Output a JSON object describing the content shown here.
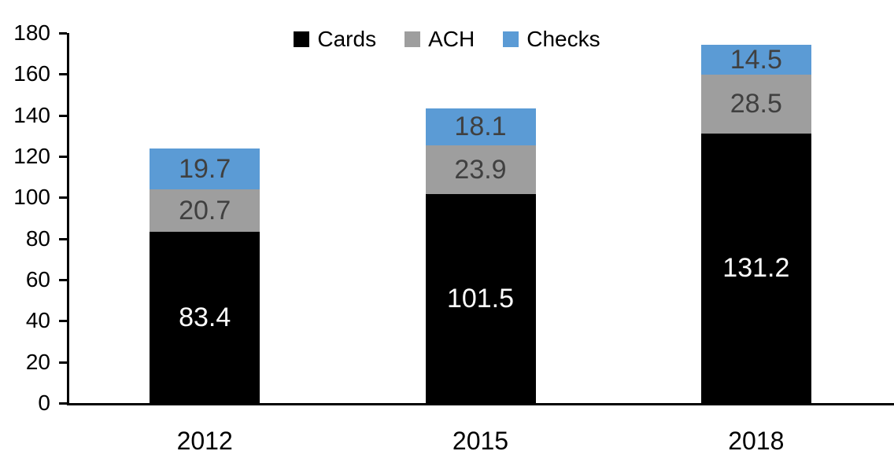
{
  "chart_data": {
    "type": "bar",
    "stacked": true,
    "title": "",
    "xlabel": "",
    "ylabel": "",
    "categories": [
      "2012",
      "2015",
      "2018"
    ],
    "series": [
      {
        "name": "Cards",
        "color": "#000000",
        "label_color": "#ffffff",
        "values": [
          83.4,
          101.5,
          131.2
        ]
      },
      {
        "name": "ACH",
        "color": "#9e9e9e",
        "label_color": "#404040",
        "values": [
          20.7,
          23.9,
          28.5
        ]
      },
      {
        "name": "Checks",
        "color": "#5b9bd5",
        "label_color": "#404040",
        "values": [
          19.7,
          18.1,
          14.5
        ]
      }
    ],
    "totals": [
      123.8,
      143.5,
      174.2
    ],
    "ylim": [
      0,
      180
    ],
    "ytick_step": 20,
    "ytick_labels": [
      "0",
      "20",
      "40",
      "60",
      "80",
      "100",
      "120",
      "140",
      "160",
      "180"
    ],
    "legend_position": "top",
    "grid": false,
    "axis_color": "#000000"
  }
}
